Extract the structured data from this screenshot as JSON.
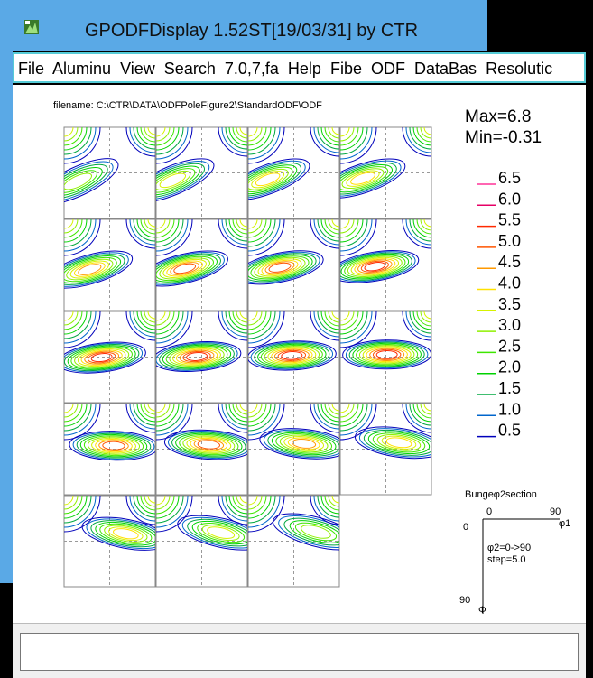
{
  "window": {
    "title": "GPODFDisplay 1.52ST[19/03/31] by CTR"
  },
  "menu": [
    "File",
    "Aluminu",
    "View",
    "Search",
    "7.0,7,fa",
    "Help",
    "Fibe",
    "ODF",
    "DataBas",
    "Resolutic"
  ],
  "plot": {
    "filename": "filename: C:\\CTR\\DATA\\ODFPoleFigure2\\StandardODF\\ODF",
    "max_label": "Max=6.8",
    "min_label": "Min=-0.31"
  },
  "legend": {
    "levels": [
      {
        "value": "6.5",
        "color": "#ff3399"
      },
      {
        "value": "6.0",
        "color": "#e60066"
      },
      {
        "value": "5.5",
        "color": "#ff2a00"
      },
      {
        "value": "5.0",
        "color": "#ff5500"
      },
      {
        "value": "4.5",
        "color": "#ff9900"
      },
      {
        "value": "4.0",
        "color": "#ffe100"
      },
      {
        "value": "3.5",
        "color": "#d6f200"
      },
      {
        "value": "3.0",
        "color": "#8ff000"
      },
      {
        "value": "2.5",
        "color": "#3ee600"
      },
      {
        "value": "2.0",
        "color": "#00d200"
      },
      {
        "value": "1.5",
        "color": "#00a840"
      },
      {
        "value": "1.0",
        "color": "#0066cc"
      },
      {
        "value": "0.5",
        "color": "#0000bb"
      }
    ]
  },
  "section": {
    "title": "Bungeφ2section",
    "phi1_start": "0",
    "phi1_end": "90",
    "phi1_axis": "φ1",
    "Phi_start": "0",
    "Phi_end": "90",
    "Phi_axis": "Φ",
    "range": "φ2=0->90",
    "step": "step=5.0"
  },
  "status": {
    "text": ""
  }
}
